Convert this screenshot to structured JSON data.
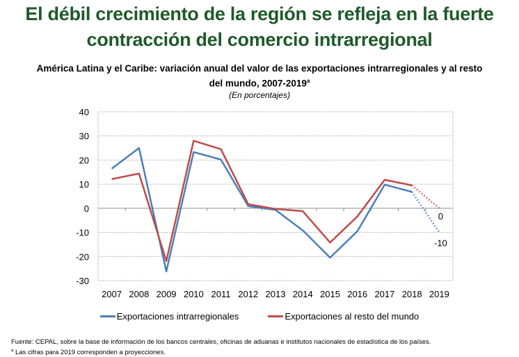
{
  "header": {
    "title_line1": "El débil crecimiento de la región se refleja en la fuerte",
    "title_line2": "contracción del comercio intrarregional"
  },
  "chart_data": {
    "type": "line",
    "title": "América Latina y el Caribe: variación anual del valor de las exportaciones intrarregionales y al resto del mundo, 2007-2019",
    "title_line1": "América Latina y el Caribe: variación anual del valor de las exportaciones intrarregionales y al resto",
    "title_line2": "del mundo, 2007-2019",
    "title_superscript": "a",
    "subtitle": "(En porcentajes)",
    "xlabel": "",
    "ylabel": "",
    "x": [
      "2007",
      "2008",
      "2009",
      "2010",
      "2011",
      "2012",
      "2013",
      "2014",
      "2015",
      "2016",
      "2017",
      "2018",
      "2019"
    ],
    "ylim": [
      -30,
      40
    ],
    "yticks": [
      40,
      30,
      20,
      10,
      0,
      -10,
      -20,
      -30
    ],
    "grid": true,
    "legend_position": "bottom",
    "series": [
      {
        "name": "Exportaciones intrarregionales",
        "color": "#4a7ebb",
        "values": [
          16.4,
          25.0,
          -26.2,
          23.3,
          20.2,
          0.9,
          -0.7,
          -9.2,
          -20.5,
          -9.5,
          9.8,
          6.8,
          -10
        ],
        "projected_from_index": 11,
        "end_label": "-10"
      },
      {
        "name": "Exportaciones al resto del mundo",
        "color": "#be4b48",
        "values": [
          12.1,
          14.4,
          -21.9,
          28.0,
          24.5,
          1.7,
          -0.3,
          -1.2,
          -14.2,
          -3.4,
          11.8,
          9.5,
          0
        ],
        "projected_from_index": 11,
        "end_label": "0"
      }
    ]
  },
  "footer": {
    "source": "Fuente: CEPAL, sobre la base de información de los bancos centrales, oficinas de aduanas e institutos nacionales de estadística de los países.",
    "note_marker": "a",
    "note": " Las cifras para 2019 corresponden a proyecciones."
  }
}
